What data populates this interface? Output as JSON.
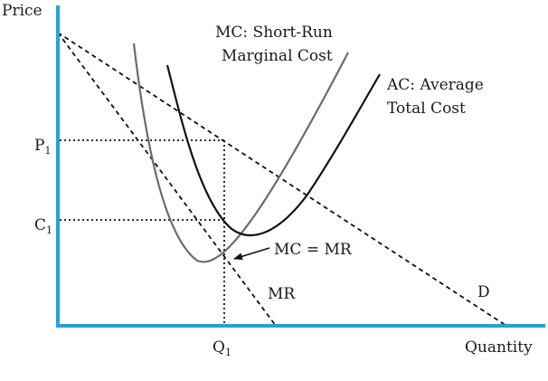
{
  "axes": {
    "y_label": "Price",
    "x_label": "Quantity",
    "color": "#2b9fd6"
  },
  "ticks": {
    "p": "P",
    "p_sub": "1",
    "c": "C",
    "c_sub": "1",
    "q": "Q",
    "q_sub": "1"
  },
  "curves": {
    "mc": {
      "line1": "MC: Short-Run",
      "line2": "Marginal Cost",
      "color": "#6b6b6b"
    },
    "ac": {
      "line1": "AC: Average",
      "line2": "Total Cost",
      "color": "#111111"
    },
    "demand": {
      "label": "D",
      "style": "dashed"
    },
    "mr": {
      "label": "MR",
      "style": "dashed"
    }
  },
  "annotations": {
    "intersection": "MC = MR"
  }
}
